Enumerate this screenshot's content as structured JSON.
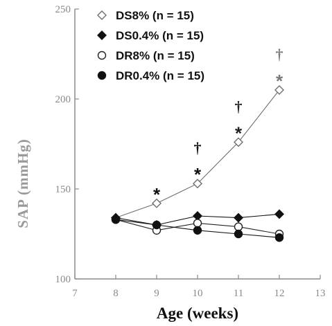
{
  "chart_data": {
    "type": "line",
    "xlabel": "Age (weeks)",
    "ylabel": "SAP (mmHg)",
    "xlim": [
      7,
      13
    ],
    "ylim": [
      100,
      250
    ],
    "x_ticks": [
      "7",
      "8",
      "9",
      "10",
      "11",
      "12",
      "13"
    ],
    "y_ticks": [
      "100",
      "150",
      "200",
      "250"
    ],
    "x": [
      8,
      9,
      10,
      11,
      12
    ],
    "series": [
      {
        "name": "DS8%",
        "legend": "DS8% (n = 15)",
        "marker": "open-diamond",
        "color": "#6e6e6e",
        "values": [
          134,
          142,
          153,
          176,
          205
        ]
      },
      {
        "name": "DS0.4%",
        "legend": "DS0.4% (n = 15)",
        "marker": "filled-diamond",
        "color": "#111111",
        "values": [
          134,
          130,
          135,
          134,
          136
        ]
      },
      {
        "name": "DR8%",
        "legend": "DR8% (n = 15)",
        "marker": "open-circle",
        "color": "#222222",
        "values": [
          133,
          127,
          131,
          129,
          125
        ]
      },
      {
        "name": "DR0.4%",
        "legend": "DR0.4% (n = 15)",
        "marker": "filled-circle",
        "color": "#111111",
        "values": [
          133,
          130,
          127,
          125,
          123
        ]
      }
    ],
    "annotations": [
      {
        "x": 9,
        "symbols": [
          "*"
        ],
        "color": "#111111"
      },
      {
        "x": 10,
        "symbols": [
          "†",
          "*"
        ],
        "color": "#111111"
      },
      {
        "x": 11,
        "symbols": [
          "†",
          "*"
        ],
        "color": "#222222"
      },
      {
        "x": 12,
        "symbols": [
          "†",
          "*"
        ],
        "color": "#7a7a7a"
      }
    ],
    "legend_position": "top-left",
    "grid": false
  }
}
